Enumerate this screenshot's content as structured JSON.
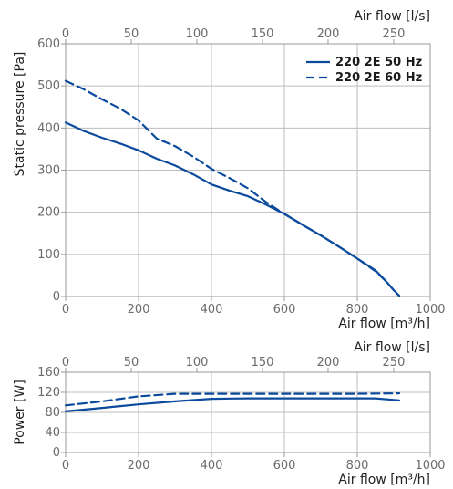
{
  "chart_data": [
    {
      "type": "line",
      "title": "",
      "xlabel": "Air flow [m³/h]",
      "ylabel": "Static pressure [Pa]",
      "x2label": "Air flow [l/s]",
      "xlim": [
        0,
        1000
      ],
      "ylim": [
        0,
        600
      ],
      "x2lim": [
        0,
        277.8
      ],
      "xticks": [
        "0",
        "200",
        "400",
        "600",
        "800",
        "1000"
      ],
      "yticks": [
        "0",
        "100",
        "200",
        "300",
        "400",
        "500",
        "600"
      ],
      "x2ticks": [
        "0",
        "50",
        "100",
        "150",
        "200",
        "250"
      ],
      "grid": true,
      "legend_position": "top-right",
      "series": [
        {
          "name": "220 2E 50 Hz",
          "style": "solid",
          "color": "#0b4a9c",
          "x": [
            0,
            50,
            100,
            150,
            200,
            250,
            300,
            350,
            400,
            450,
            500,
            550,
            600,
            650,
            700,
            750,
            800,
            850,
            880,
            900,
            915
          ],
          "y": [
            413,
            393,
            377,
            363,
            347,
            327,
            311,
            290,
            266,
            251,
            238,
            218,
            196,
            170,
            145,
            118,
            90,
            62,
            35,
            15,
            2
          ]
        },
        {
          "name": "220 2E 60 Hz",
          "style": "dashed",
          "color": "#0b4a9c",
          "x": [
            0,
            50,
            100,
            150,
            200,
            250,
            300,
            350,
            400,
            450,
            500,
            550,
            600,
            650,
            700,
            750,
            800,
            850,
            880,
            900,
            915
          ],
          "y": [
            512,
            492,
            468,
            446,
            418,
            375,
            357,
            332,
            303,
            281,
            257,
            224,
            196,
            170,
            145,
            118,
            90,
            60,
            35,
            15,
            2
          ]
        }
      ]
    },
    {
      "type": "line",
      "title": "",
      "xlabel": "Air flow [m³/h]",
      "ylabel": "Power [W]",
      "x2label": "Air flow [l/s]",
      "xlim": [
        0,
        1000
      ],
      "ylim": [
        0,
        160
      ],
      "x2lim": [
        0,
        277.8
      ],
      "xticks": [
        "0",
        "200",
        "400",
        "600",
        "800",
        "1000"
      ],
      "yticks": [
        "0",
        "40",
        "80",
        "120",
        "160"
      ],
      "x2ticks": [
        "0",
        "50",
        "100",
        "150",
        "200",
        "250"
      ],
      "grid": true,
      "series": [
        {
          "name": "220 2E 50 Hz",
          "style": "solid",
          "color": "#0b4a9c",
          "x": [
            0,
            100,
            200,
            300,
            400,
            500,
            600,
            700,
            800,
            850,
            915
          ],
          "y": [
            82,
            89,
            96,
            102,
            107,
            108,
            108,
            108,
            108,
            108,
            104
          ]
        },
        {
          "name": "220 2E 60 Hz",
          "style": "dashed",
          "color": "#0b4a9c",
          "x": [
            0,
            100,
            200,
            300,
            400,
            500,
            600,
            700,
            800,
            915
          ],
          "y": [
            94,
            102,
            112,
            117,
            117,
            117,
            117,
            117,
            117,
            118
          ]
        }
      ]
    }
  ]
}
